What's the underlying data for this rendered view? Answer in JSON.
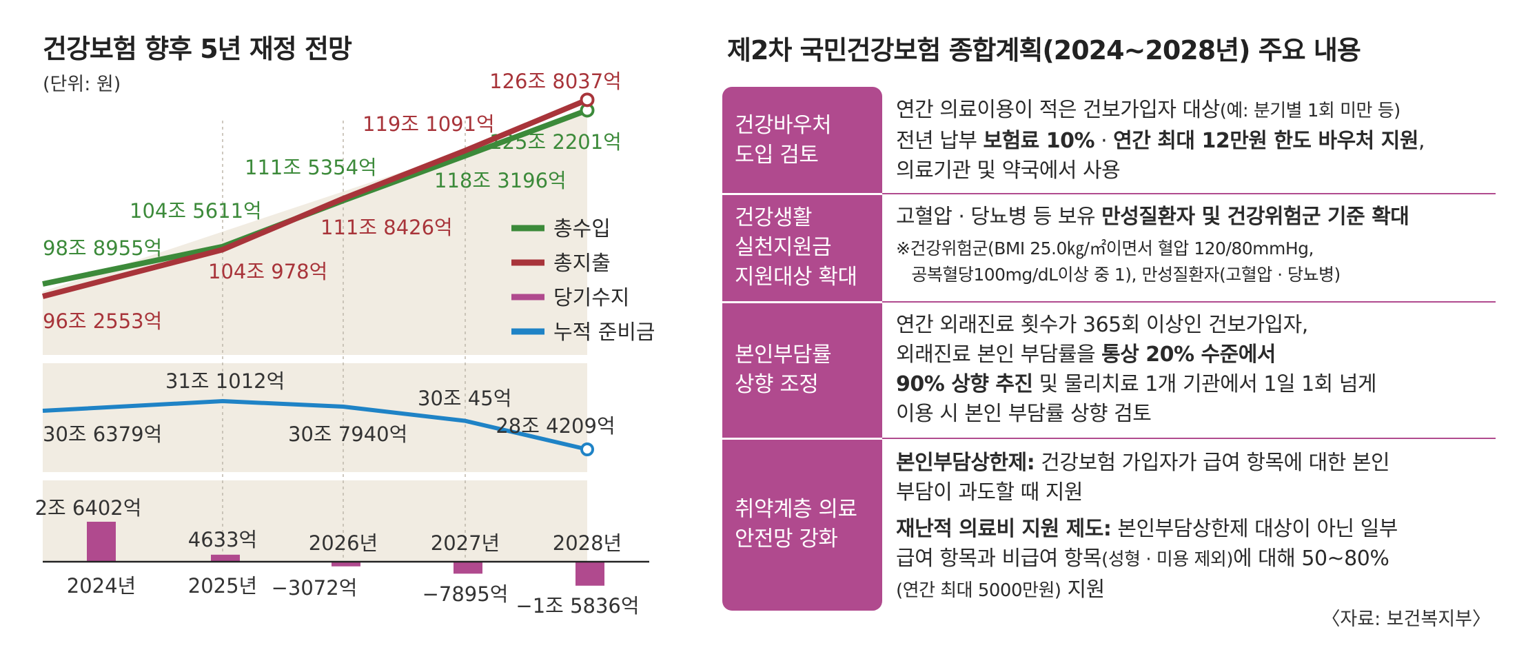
{
  "left": {
    "title": "건강보험 향후 5년 재정 전망",
    "unit": "(단위: 원)"
  },
  "chart_data": [
    {
      "type": "line",
      "categories": [
        "2024년",
        "2025년",
        "2026년",
        "2027년",
        "2028년"
      ],
      "series": [
        {
          "name": "총수입",
          "color": "#3c8a3a",
          "values": [
            98.8955,
            104.5611,
            111.5354,
            118.3196,
            125.2201
          ],
          "labels": [
            "98조 8955억",
            "104조 5611억",
            "111조 5354억",
            "118조 3196억",
            "125조 2201억"
          ]
        },
        {
          "name": "총지출",
          "color": "#a8343a",
          "values": [
            96.2553,
            104.0978,
            111.8426,
            119.1091,
            126.8037
          ],
          "labels": [
            "96조 2553억",
            "104조 978억",
            "111조 8426억",
            "119조 1091억",
            "126조 8037억"
          ]
        }
      ],
      "unit": "조 원"
    },
    {
      "type": "line",
      "categories": [
        "2024년",
        "2025년",
        "2026년",
        "2027년",
        "2028년"
      ],
      "series": [
        {
          "name": "누적 준비금",
          "color": "#1f83c6",
          "values": [
            30.6379,
            31.1012,
            30.794,
            30.0045,
            28.4209
          ],
          "labels": [
            "30조 6379억",
            "31조 1012억",
            "30조 7940억",
            "30조 45억",
            "28조 4209억"
          ]
        }
      ],
      "unit": "조 원"
    },
    {
      "type": "bar",
      "categories": [
        "2024년",
        "2025년",
        "2026년",
        "2027년",
        "2028년"
      ],
      "series": [
        {
          "name": "당기수지",
          "color": "#b04a8e",
          "values": [
            2.6402,
            0.4633,
            -0.3072,
            -0.7895,
            -1.5836
          ],
          "labels": [
            "2조 6402억",
            "4633억",
            "−3072억",
            "−7895억",
            "−1조 5836억"
          ]
        }
      ],
      "unit": "조 원"
    }
  ],
  "legend": [
    {
      "label": "총수입",
      "color": "#3c8a3a"
    },
    {
      "label": "총지출",
      "color": "#a8343a"
    },
    {
      "label": "당기수지",
      "color": "#b04a8e"
    },
    {
      "label": "누적 준비금",
      "color": "#1f83c6"
    }
  ],
  "right": {
    "title": "제2차 국민건강보험 종합계획(2024~2028년) 주요 내용",
    "rows": [
      {
        "label": [
          "건강바우처",
          "도입 검토"
        ],
        "lines": [
          [
            {
              "t": "연간 의료이용이 적은 건보가입자 대상"
            },
            {
              "t": "(예: 분기별 1회 미만 등)",
              "s": 1
            }
          ],
          [
            {
              "t": "전년 납부 "
            },
            {
              "t": "보험료 10%",
              "b": 1
            },
            {
              "t": " · "
            },
            {
              "t": "연간 최대 12만원 한도 바우처 지원",
              "b": 1
            },
            {
              "t": ","
            }
          ],
          [
            {
              "t": "의료기관 및 약국에서 사용"
            }
          ]
        ]
      },
      {
        "label": [
          "건강생활",
          "실천지원금",
          "지원대상 확대"
        ],
        "lines": [
          [
            {
              "t": "고혈압 · 당뇨병 등 보유 "
            },
            {
              "t": "만성질환자 및 건강위험군 기준 확대",
              "b": 1
            }
          ]
        ],
        "notes": [
          "※건강위험군(BMI 25.0㎏/㎡이면서 혈압 120/80mmHg,",
          "   공복혈당100mg/dL이상 중 1), 만성질환자(고혈압 · 당뇨병)"
        ]
      },
      {
        "label": [
          "본인부담률",
          "상향 조정"
        ],
        "lines": [
          [
            {
              "t": "연간 외래진료 횟수가 365회 이상인 건보가입자,"
            }
          ],
          [
            {
              "t": "외래진료 본인 부담률을 "
            },
            {
              "t": "통상 20% 수준에서",
              "b": 1
            }
          ],
          [
            {
              "t": "90% 상향 추진",
              "b": 1
            },
            {
              "t": " 및 물리치료 1개 기관에서 1일 1회 넘게"
            }
          ],
          [
            {
              "t": "이용 시 본인 부담률 상향 검토"
            }
          ]
        ]
      },
      {
        "label": [
          "취약계층 의료",
          "안전망 강화"
        ],
        "lines": [
          [
            {
              "t": "본인부담상한제:",
              "b": 1
            },
            {
              "t": " 건강보험 가입자가 급여 항목에 대한 본인"
            }
          ],
          [
            {
              "t": "부담이 과도할 때 지원"
            }
          ],
          [
            {
              "t": "재난적 의료비 지원 제도:",
              "b": 1
            },
            {
              "t": " 본인부담상한제 대상이 아닌 일부"
            }
          ],
          [
            {
              "t": "급여 항목과 비급여 항목"
            },
            {
              "t": "(성형 · 미용 제외)",
              "s": 1
            },
            {
              "t": "에 대해 50~80%"
            }
          ],
          [
            {
              "t": "(연간 최대 5000만원)",
              "s": 1
            },
            {
              "t": " 지원"
            }
          ]
        ]
      }
    ],
    "source": "〈자료: 보건복지부〉"
  }
}
